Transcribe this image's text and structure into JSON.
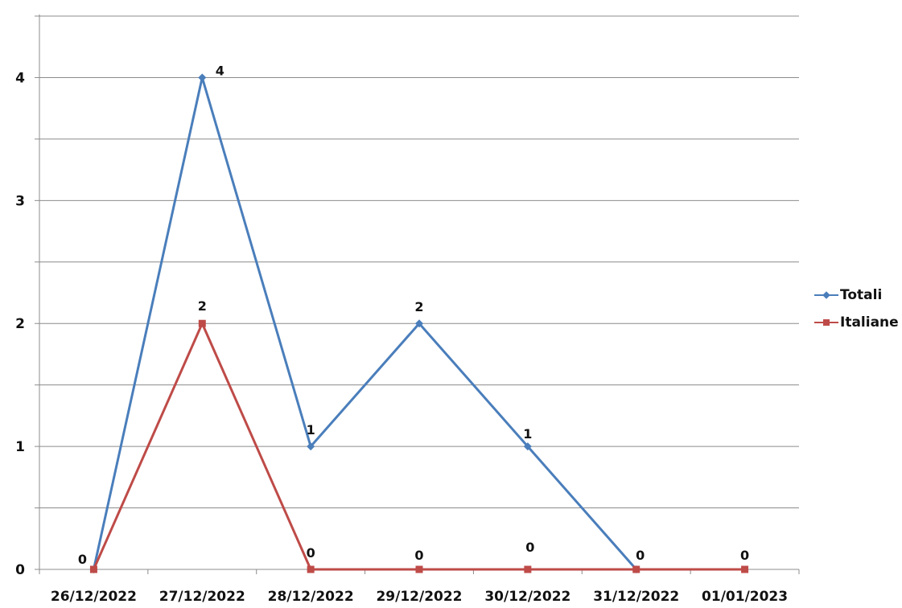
{
  "chart_data": {
    "type": "line",
    "categories": [
      "26/12/2022",
      "27/12/2022",
      "28/12/2022",
      "29/12/2022",
      "30/12/2022",
      "31/12/2022",
      "01/01/2023"
    ],
    "series": [
      {
        "name": "Totali",
        "values": [
          0,
          4,
          1,
          2,
          1,
          0,
          null
        ],
        "color": "#4a7ebb",
        "marker": "diamond"
      },
      {
        "name": "Italiane",
        "values": [
          0,
          2,
          0,
          0,
          0,
          0,
          0
        ],
        "color": "#be4b48",
        "marker": "square"
      }
    ],
    "point_labels": [
      {
        "category": "26/12/2022",
        "text": "0"
      },
      {
        "category": "27/12/2022",
        "text": "4"
      },
      {
        "category": "27/12/2022",
        "text": "2"
      },
      {
        "category": "28/12/2022",
        "text": "1"
      },
      {
        "category": "28/12/2022",
        "text": "0"
      },
      {
        "category": "29/12/2022",
        "text": "2"
      },
      {
        "category": "29/12/2022",
        "text": "0"
      },
      {
        "category": "30/12/2022",
        "text": "1"
      },
      {
        "category": "30/12/2022",
        "text": "0"
      },
      {
        "category": "31/12/2022",
        "text": "0"
      },
      {
        "category": "01/01/2023",
        "text": "0"
      }
    ],
    "yticks": [
      "0",
      "1",
      "2",
      "3",
      "4"
    ],
    "ylim": [
      0,
      4.5
    ],
    "grid": true,
    "legend_position": "right"
  }
}
